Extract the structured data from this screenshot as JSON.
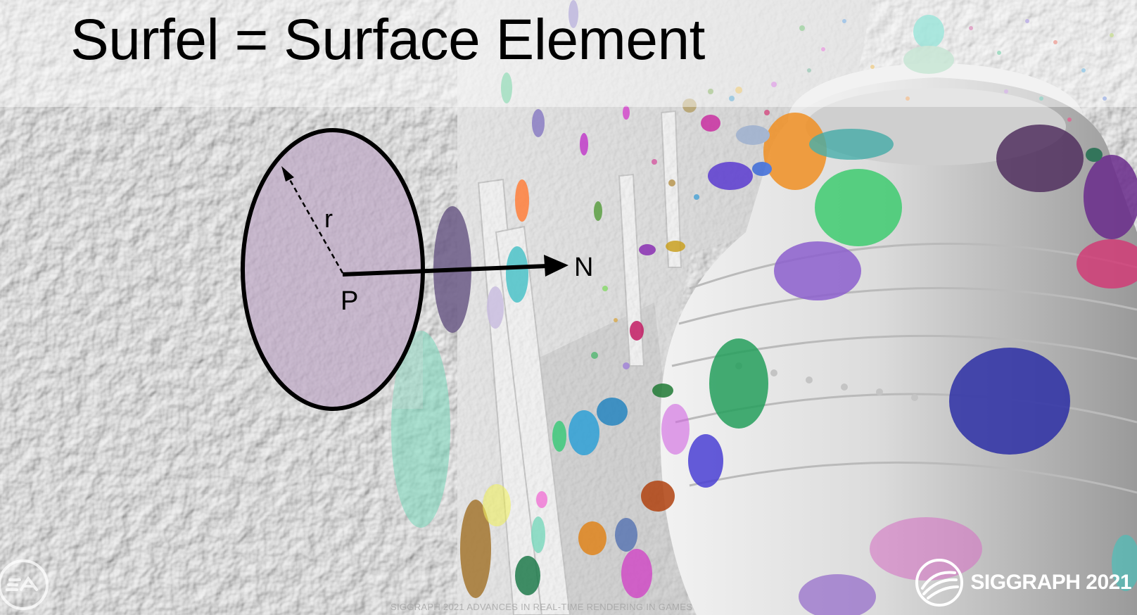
{
  "slide": {
    "title": "Surfel = Surface Element",
    "footer": "SIGGRAPH 2021 ADVANCES IN REAL-TIME RENDERING IN GAMES",
    "brand": "SIGGRAPH 2021",
    "logos": [
      "ea-logo",
      "siggraph-logo"
    ]
  },
  "diagram": {
    "radius_label": "r",
    "point_label": "P",
    "normal_label": "N",
    "disc_color": "#b9a2c2"
  }
}
